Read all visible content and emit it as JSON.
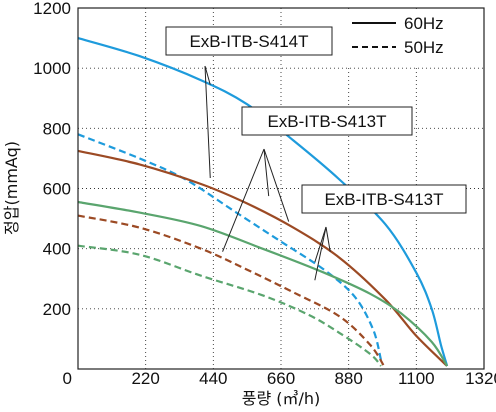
{
  "chart_data": {
    "type": "line",
    "title": "",
    "xlabel": "풍량 (㎥/h)",
    "ylabel": "정압(mmAq)",
    "xlim": [
      0,
      1320
    ],
    "ylim": [
      0,
      1200
    ],
    "x_ticks": [
      "0",
      "220",
      "440",
      "660",
      "880",
      "1100",
      "1320"
    ],
    "y_ticks": [
      "200",
      "400",
      "600",
      "800",
      "1000",
      "1200"
    ],
    "grid": true,
    "legend_position": "top-right",
    "legend": [
      {
        "label": "60Hz",
        "style": "solid"
      },
      {
        "label": "50Hz",
        "style": "dashed"
      }
    ],
    "annotations": [
      {
        "text": "ExB-ITB-S414T",
        "model": "S414T",
        "targets": [
          [
            430,
            945
          ],
          [
            430,
            635
          ]
        ]
      },
      {
        "text": "ExB-ITB-S413T",
        "model": "S413T_A",
        "targets": [
          [
            685,
            490
          ],
          [
            620,
            575
          ],
          [
            470,
            390
          ]
        ]
      },
      {
        "text": "ExB-ITB-S413T",
        "model": "S413T_B",
        "targets": [
          [
            820,
            390
          ],
          [
            770,
            295
          ],
          [
            770,
            355
          ]
        ]
      }
    ],
    "series": [
      {
        "model": "S414T",
        "frequency": "60Hz",
        "style": "solid",
        "color": "#1e9bdc",
        "points": [
          [
            0,
            1100
          ],
          [
            200,
            1040
          ],
          [
            400,
            960
          ],
          [
            550,
            880
          ],
          [
            700,
            760
          ],
          [
            850,
            630
          ],
          [
            1000,
            480
          ],
          [
            1100,
            320
          ],
          [
            1150,
            200
          ],
          [
            1180,
            80
          ],
          [
            1200,
            10
          ]
        ]
      },
      {
        "model": "S414T",
        "frequency": "50Hz",
        "style": "dashed",
        "color": "#1e9bdc",
        "points": [
          [
            0,
            780
          ],
          [
            200,
            700
          ],
          [
            350,
            630
          ],
          [
            500,
            530
          ],
          [
            650,
            430
          ],
          [
            800,
            330
          ],
          [
            900,
            240
          ],
          [
            960,
            130
          ],
          [
            985,
            30
          ]
        ]
      },
      {
        "model": "S413T_A",
        "frequency": "60Hz",
        "style": "solid",
        "color": "#9c4a24",
        "points": [
          [
            0,
            725
          ],
          [
            200,
            680
          ],
          [
            400,
            615
          ],
          [
            550,
            550
          ],
          [
            700,
            470
          ],
          [
            850,
            370
          ],
          [
            1000,
            230
          ],
          [
            1100,
            110
          ],
          [
            1200,
            10
          ]
        ]
      },
      {
        "model": "S413T_A",
        "frequency": "50Hz",
        "style": "dashed",
        "color": "#9c4a24",
        "points": [
          [
            0,
            510
          ],
          [
            200,
            470
          ],
          [
            400,
            400
          ],
          [
            550,
            330
          ],
          [
            700,
            255
          ],
          [
            850,
            175
          ],
          [
            950,
            80
          ],
          [
            995,
            10
          ]
        ]
      },
      {
        "model": "S413T_B",
        "frequency": "60Hz",
        "style": "solid",
        "color": "#5aa56e",
        "points": [
          [
            0,
            555
          ],
          [
            200,
            520
          ],
          [
            400,
            475
          ],
          [
            600,
            400
          ],
          [
            800,
            320
          ],
          [
            950,
            250
          ],
          [
            1050,
            185
          ],
          [
            1150,
            90
          ],
          [
            1200,
            10
          ]
        ]
      },
      {
        "model": "S413T_B",
        "frequency": "50Hz",
        "style": "dashed",
        "color": "#5aa56e",
        "points": [
          [
            0,
            410
          ],
          [
            200,
            380
          ],
          [
            400,
            310
          ],
          [
            600,
            245
          ],
          [
            750,
            180
          ],
          [
            850,
            120
          ],
          [
            950,
            50
          ],
          [
            985,
            10
          ]
        ]
      }
    ]
  }
}
